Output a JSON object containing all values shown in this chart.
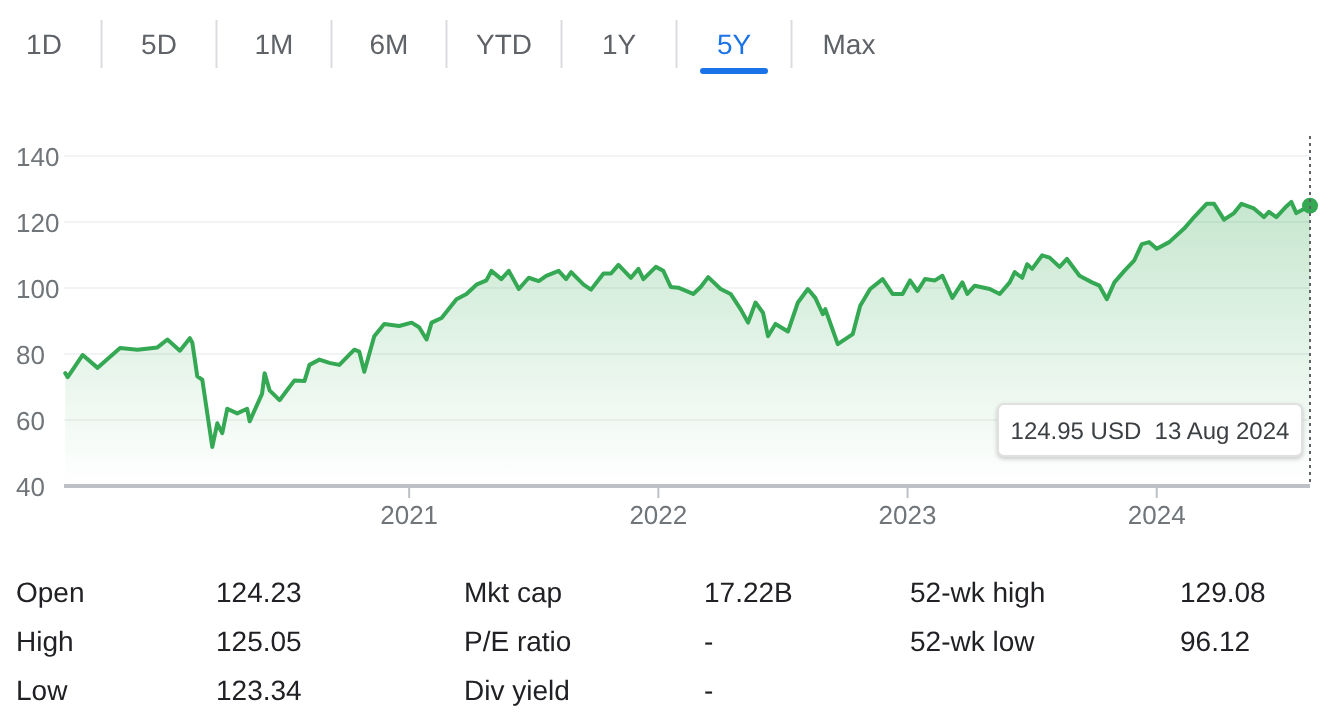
{
  "chart_data": [
    {
      "type": "other",
      "categories": [
        "1D",
        "5D",
        "1M",
        "6M",
        "YTD",
        "1Y",
        "5Y",
        "Max"
      ],
      "colors": [
        "#5f6368",
        "#5f6368",
        "#5f6368",
        "#5f6368",
        "#5f6368",
        "#5f6368",
        "#1a73e8",
        "#5f6368"
      ]
    },
    {
      "type": "area",
      "color": "#34a853",
      "grid": "y",
      "xlim": [
        2019.615,
        2024.615
      ],
      "xticks": [
        2021,
        2022,
        2023,
        2024
      ],
      "ylim": [
        40,
        140
      ],
      "yticks": [
        40,
        60,
        80,
        100,
        120,
        140
      ],
      "x": [
        2019.62,
        2019.63,
        2019.69,
        2019.75,
        2019.84,
        2019.91,
        2019.99,
        2020.03,
        2020.08,
        2020.12,
        2020.13,
        2020.15,
        2020.17,
        2020.21,
        2020.23,
        2020.25,
        2020.27,
        2020.31,
        2020.35,
        2020.36,
        2020.41,
        2020.42,
        2020.44,
        2020.48,
        2020.51,
        2020.54,
        2020.58,
        2020.6,
        2020.64,
        2020.68,
        2020.72,
        2020.78,
        2020.8,
        2020.82,
        2020.86,
        2020.9,
        2020.96,
        2021.01,
        2021.04,
        2021.07,
        2021.09,
        2021.13,
        2021.19,
        2021.23,
        2021.27,
        2021.31,
        2021.33,
        2021.37,
        2021.4,
        2021.44,
        2021.48,
        2021.52,
        2021.55,
        2021.6,
        2021.63,
        2021.65,
        2021.7,
        2021.73,
        2021.78,
        2021.81,
        2021.84,
        2021.89,
        2021.92,
        2021.94,
        2021.99,
        2022.02,
        2022.05,
        2022.08,
        2022.14,
        2022.17,
        2022.2,
        2022.25,
        2022.29,
        2022.33,
        2022.36,
        2022.39,
        2022.42,
        2022.44,
        2022.47,
        2022.52,
        2022.56,
        2022.6,
        2022.63,
        2022.66,
        2022.67,
        2022.72,
        2022.78,
        2022.81,
        2022.85,
        2022.9,
        2022.94,
        2022.98,
        2023.01,
        2023.04,
        2023.07,
        2023.11,
        2023.14,
        2023.18,
        2023.22,
        2023.24,
        2023.27,
        2023.33,
        2023.37,
        2023.41,
        2023.43,
        2023.46,
        2023.48,
        2023.5,
        2023.54,
        2023.57,
        2023.61,
        2023.64,
        2023.69,
        2023.74,
        2023.77,
        2023.8,
        2023.83,
        2023.87,
        2023.91,
        2023.94,
        2023.97,
        2024.0,
        2024.05,
        2024.11,
        2024.15,
        2024.2,
        2024.23,
        2024.27,
        2024.31,
        2024.34,
        2024.39,
        2024.43,
        2024.45,
        2024.48,
        2024.52,
        2024.54,
        2024.56,
        2024.615
      ],
      "values": [
        74.2,
        73,
        79.7,
        75.8,
        81.8,
        81.3,
        82,
        84.4,
        81,
        84.8,
        83.4,
        73.2,
        72.2,
        51.8,
        59,
        56,
        63.4,
        62,
        63.4,
        59.6,
        68,
        74.2,
        69,
        66,
        69,
        72,
        71.8,
        76.7,
        78.3,
        77.3,
        76.7,
        81.3,
        80.7,
        74.6,
        85.4,
        89.1,
        88.5,
        89.5,
        88.1,
        84.4,
        89.5,
        90.9,
        96.6,
        98.2,
        101,
        102.3,
        105.2,
        102.7,
        105.2,
        99.7,
        103.1,
        102.1,
        103.7,
        105.2,
        102.7,
        104.8,
        101,
        99.5,
        104.4,
        104.4,
        107,
        103.1,
        105.8,
        102.7,
        106.4,
        105.2,
        100.3,
        100.1,
        98.2,
        100.3,
        103.3,
        99.7,
        98.2,
        93.6,
        89.5,
        95.6,
        92.5,
        85.4,
        89.1,
        86.8,
        95.6,
        99.7,
        97,
        92.1,
        93.6,
        83,
        86,
        94.6,
        99.7,
        102.7,
        98.2,
        98.2,
        102.3,
        99.1,
        102.7,
        102.3,
        103.7,
        97,
        101.7,
        98.2,
        100.7,
        99.7,
        98.2,
        101.7,
        104.8,
        103.1,
        107.2,
        105.8,
        109.9,
        109.2,
        106.4,
        108.8,
        103.7,
        101.7,
        100.7,
        96.6,
        101.7,
        105.2,
        108.4,
        113.3,
        113.9,
        111.9,
        113.9,
        118,
        121.5,
        125.5,
        125.5,
        120.7,
        122.7,
        125.5,
        124.1,
        121.5,
        123.1,
        121.5,
        124.7,
        126.1,
        122.7,
        124.95
      ],
      "ref_lines": [
        {
          "axis": "x",
          "value": 2024.615,
          "line_style": "dotted",
          "color": "#5f6368"
        }
      ],
      "annotations": [
        "124.95 USD  13 Aug 2024"
      ]
    },
    {
      "type": "other",
      "categories": [
        "Open",
        "High",
        "Low",
        "Mkt cap",
        "P/E ratio",
        "Div yield",
        "52-wk high",
        "52-wk low"
      ],
      "value_labels": [
        "124.23",
        "125.05",
        "123.34",
        "17.22B",
        "-",
        "-",
        "129.08",
        "96.12"
      ]
    }
  ]
}
